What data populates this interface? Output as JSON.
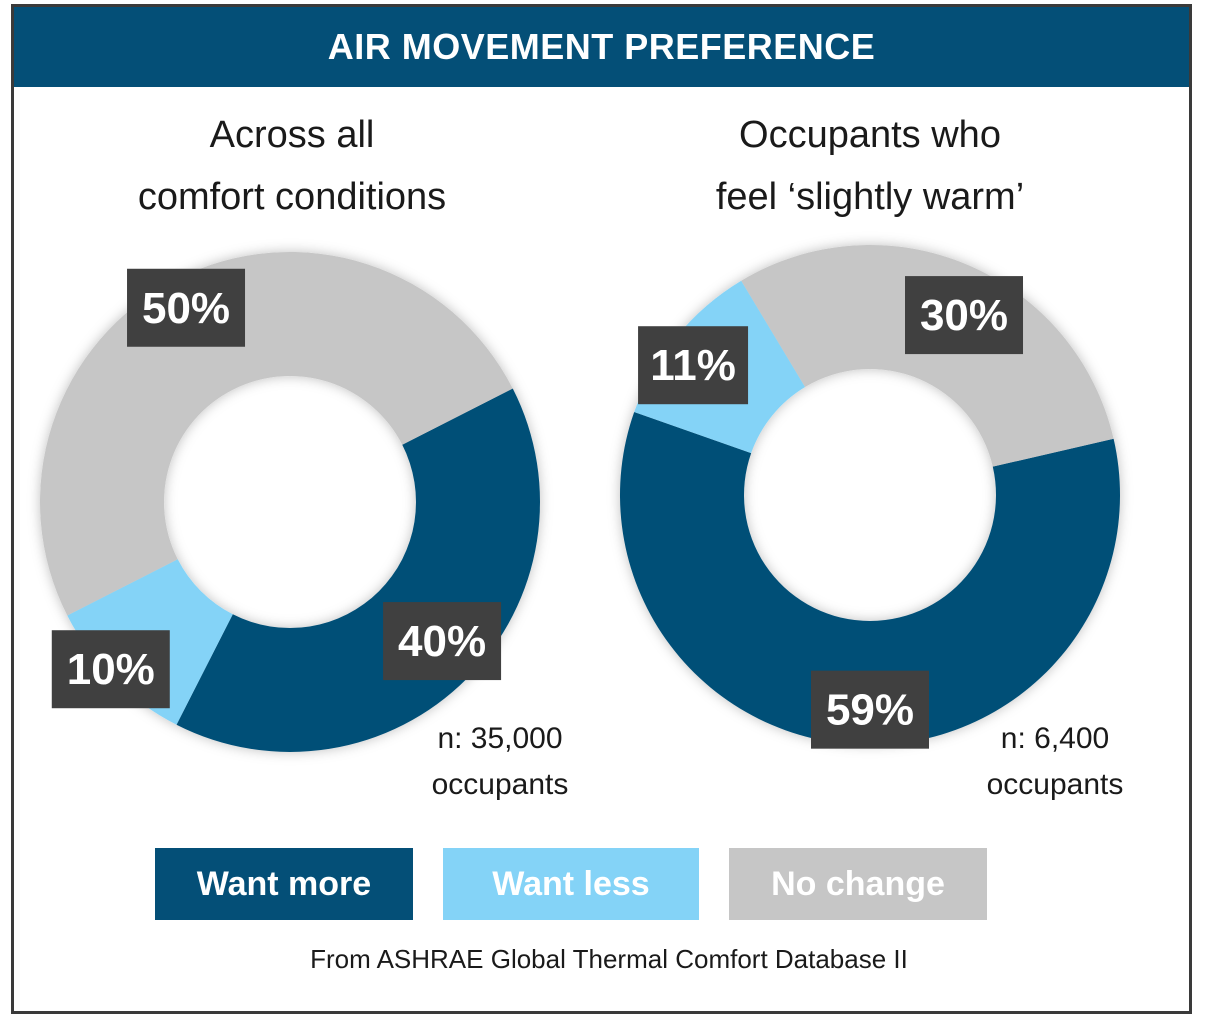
{
  "header": {
    "title": "AIR MOVEMENT PREFERENCE"
  },
  "colors": {
    "want_more": "#044f77",
    "want_less": "#84d3f7",
    "no_change": "#c6c6c6",
    "label_box": "#404040",
    "header": "#044f77"
  },
  "chart_data": [
    {
      "type": "pie",
      "title_lines": [
        "Across all",
        "comfort conditions"
      ],
      "sample_size_lines": [
        "n: 35,000",
        "occupants"
      ],
      "categories": [
        "Want more",
        "Want less",
        "No change"
      ],
      "values": [
        40,
        10,
        50
      ],
      "labels": [
        "40%",
        "10%",
        "50%"
      ]
    },
    {
      "type": "pie",
      "title_lines": [
        "Occupants who",
        "feel ‘slightly warm’"
      ],
      "sample_size_lines": [
        "n: 6,400",
        "occupants"
      ],
      "categories": [
        "Want more",
        "Want less",
        "No change"
      ],
      "values": [
        59,
        11,
        30
      ],
      "labels": [
        "59%",
        "11%",
        "30%"
      ]
    }
  ],
  "legend": {
    "items": [
      {
        "label": "Want more",
        "color": "#044f77"
      },
      {
        "label": "Want less",
        "color": "#84d3f7"
      },
      {
        "label": "No change",
        "color": "#c6c6c6"
      }
    ]
  },
  "footer": {
    "source": "From ASHRAE Global Thermal Comfort Database II"
  }
}
